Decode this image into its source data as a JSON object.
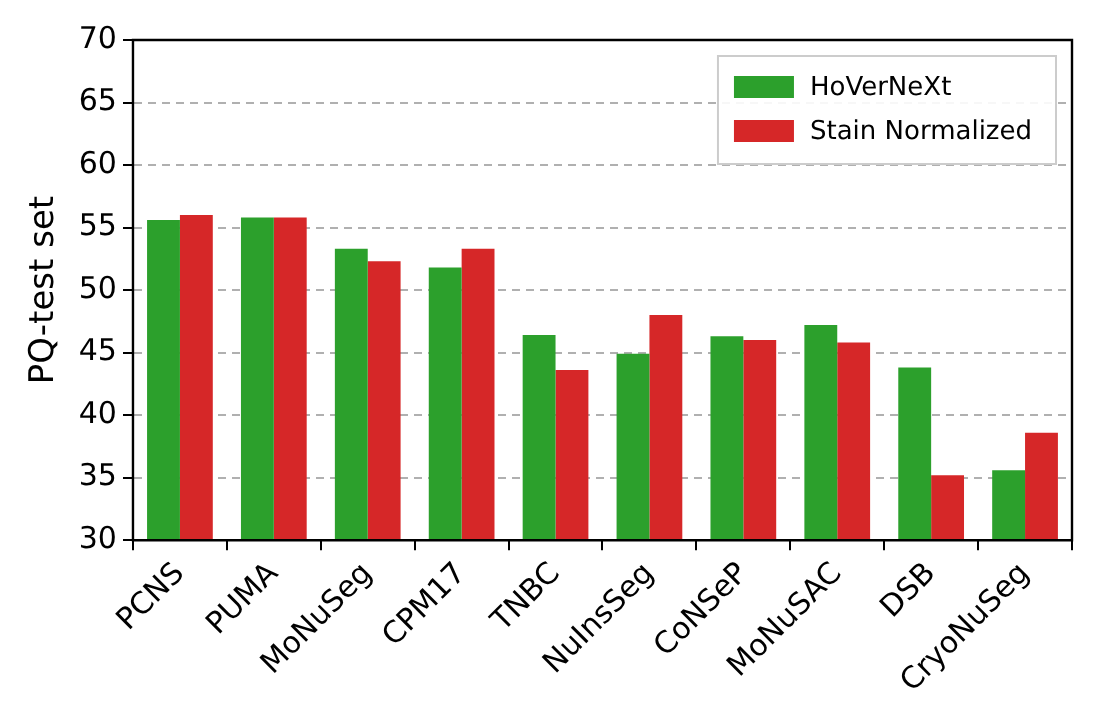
{
  "chart_data": {
    "type": "bar",
    "ylabel": "PQ-test set",
    "categories": [
      "PCNS",
      "PUMA",
      "MoNuSeg",
      "CPM17",
      "TNBC",
      "NuInsSeg",
      "CoNSeP",
      "MoNuSAC",
      "DSB",
      "CryoNuSeg"
    ],
    "series": [
      {
        "name": "HoVerNeXt",
        "color": "#2ca02c",
        "values": [
          55.6,
          55.8,
          53.3,
          51.8,
          46.4,
          44.9,
          46.3,
          47.2,
          43.8,
          35.6
        ]
      },
      {
        "name": "Stain Normalized",
        "color": "#d62728",
        "values": [
          56.0,
          55.8,
          52.3,
          53.3,
          43.6,
          48.0,
          46.0,
          45.8,
          35.2,
          38.6
        ]
      }
    ],
    "ylim": [
      30,
      70
    ],
    "yticks": [
      30,
      35,
      40,
      45,
      50,
      55,
      60,
      65,
      70
    ],
    "grid": "y",
    "legend": "top right"
  }
}
